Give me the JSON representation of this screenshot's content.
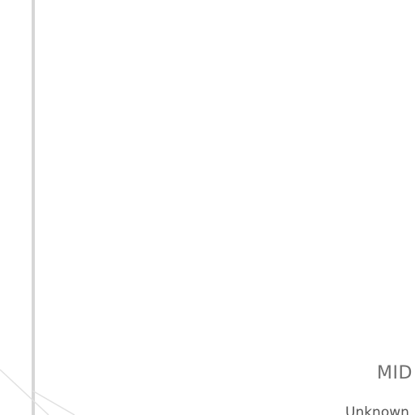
{
  "labels": {
    "primary": "MID",
    "secondary": "Unknown"
  },
  "colors": {
    "background": "#ffffff",
    "rule": "#d6d6d6",
    "primary_text": "#6f6f6f",
    "secondary_text": "#555555"
  }
}
